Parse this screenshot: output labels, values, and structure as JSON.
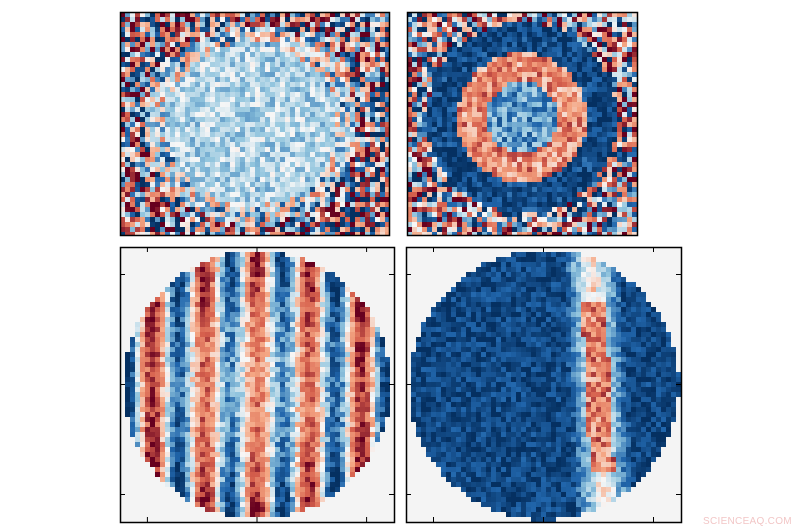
{
  "watermark": "SCIENCEAQ.COM"
}
